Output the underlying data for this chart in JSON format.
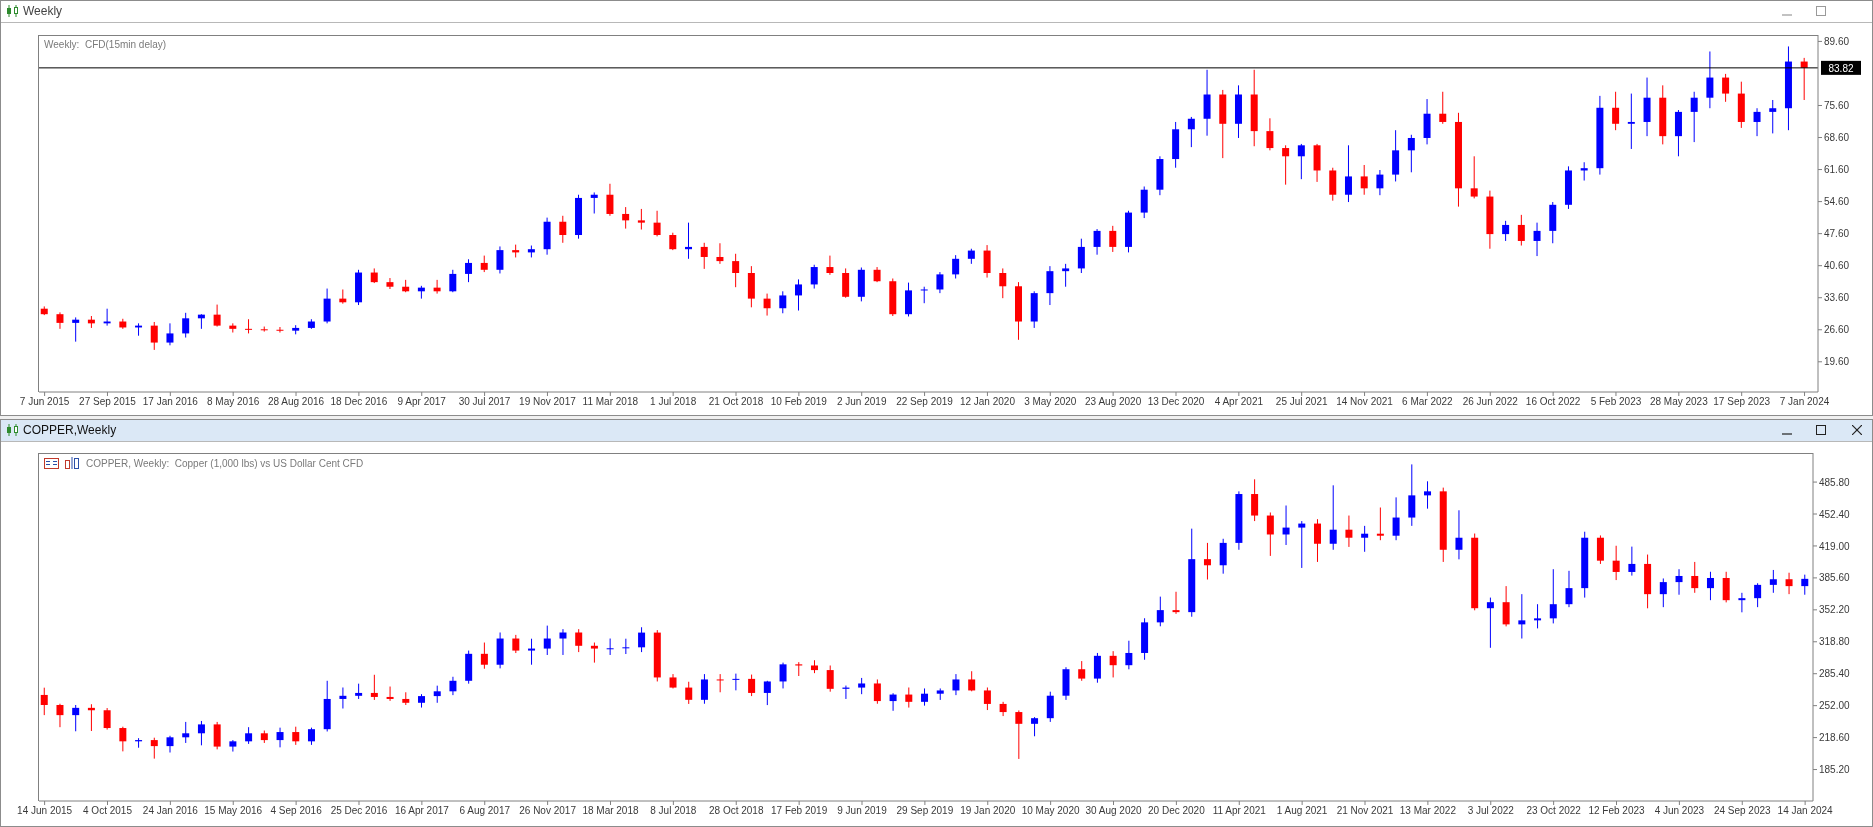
{
  "chart_data": [
    {
      "type": "candlestick",
      "title": "Weekly",
      "subtitle": "Weekly:  CFD(15min delay)",
      "x": [
        "2015-06-07",
        "2015-07-05",
        "2015-08-02",
        "2015-08-30",
        "2015-09-27",
        "2015-10-25",
        "2015-11-22",
        "2015-12-20",
        "2016-01-17",
        "2016-02-14",
        "2016-03-13",
        "2016-04-10",
        "2016-05-08",
        "2016-06-05",
        "2016-07-03",
        "2016-07-31",
        "2016-08-28",
        "2016-09-25",
        "2016-10-23",
        "2016-11-20",
        "2016-12-18",
        "2017-01-15",
        "2017-02-12",
        "2017-03-12",
        "2017-04-09",
        "2017-05-07",
        "2017-06-04",
        "2017-07-02",
        "2017-07-30",
        "2017-08-27",
        "2017-09-24",
        "2017-10-22",
        "2017-11-19",
        "2017-12-17",
        "2018-01-14",
        "2018-02-11",
        "2018-03-11",
        "2018-04-08",
        "2018-05-06",
        "2018-06-03",
        "2018-07-01",
        "2018-07-29",
        "2018-08-26",
        "2018-09-23",
        "2018-10-21",
        "2018-11-18",
        "2018-12-16",
        "2019-01-13",
        "2019-02-10",
        "2019-03-10",
        "2019-04-07",
        "2019-05-05",
        "2019-06-02",
        "2019-06-30",
        "2019-07-28",
        "2019-08-25",
        "2019-09-22",
        "2019-10-20",
        "2019-11-17",
        "2019-12-15",
        "2020-01-12",
        "2020-02-09",
        "2020-03-08",
        "2020-04-05",
        "2020-05-03",
        "2020-05-31",
        "2020-06-28",
        "2020-07-26",
        "2020-08-23",
        "2020-09-20",
        "2020-10-18",
        "2020-11-15",
        "2020-12-13",
        "2021-01-10",
        "2021-02-07",
        "2021-03-07",
        "2021-04-04",
        "2021-05-02",
        "2021-05-30",
        "2021-06-27",
        "2021-07-25",
        "2021-08-22",
        "2021-09-19",
        "2021-10-17",
        "2021-11-14",
        "2021-12-12",
        "2022-01-09",
        "2022-02-06",
        "2022-03-06",
        "2022-04-03",
        "2022-05-01",
        "2022-05-29",
        "2022-06-26",
        "2022-07-24",
        "2022-08-21",
        "2022-09-18",
        "2022-10-16",
        "2022-11-13",
        "2022-12-11",
        "2023-01-08",
        "2023-02-05",
        "2023-03-05",
        "2023-04-02",
        "2023-04-30",
        "2023-05-28",
        "2023-06-25",
        "2023-07-23",
        "2023-08-20",
        "2023-09-17",
        "2023-10-15",
        "2023-11-12",
        "2023-12-10",
        "2024-01-07"
      ],
      "ohlc": [
        [
          31.2,
          31.7,
          29.8,
          30.0
        ],
        [
          30.0,
          30.4,
          26.8,
          28.1
        ],
        [
          28.1,
          29.3,
          24.0,
          28.8
        ],
        [
          28.8,
          29.6,
          27.0,
          28.0
        ],
        [
          28.0,
          31.2,
          27.5,
          28.4
        ],
        [
          28.4,
          29.0,
          26.8,
          27.1
        ],
        [
          27.1,
          28.0,
          25.3,
          27.5
        ],
        [
          27.5,
          28.3,
          22.2,
          23.8
        ],
        [
          23.8,
          28.0,
          23.2,
          25.8
        ],
        [
          25.8,
          30.3,
          24.9,
          29.1
        ],
        [
          29.1,
          30.0,
          26.8,
          29.9
        ],
        [
          29.9,
          32.1,
          27.3,
          27.5
        ],
        [
          27.5,
          28.0,
          26.0,
          26.8
        ],
        [
          26.8,
          28.9,
          25.8,
          26.7
        ],
        [
          26.7,
          27.3,
          26.2,
          26.6
        ],
        [
          26.6,
          27.2,
          26.0,
          26.4
        ],
        [
          26.4,
          27.6,
          25.6,
          27.0
        ],
        [
          27.0,
          28.9,
          26.8,
          28.4
        ],
        [
          28.4,
          35.6,
          28.0,
          33.4
        ],
        [
          33.4,
          35.4,
          32.3,
          32.6
        ],
        [
          32.6,
          39.7,
          32.0,
          39.1
        ],
        [
          39.1,
          40.0,
          36.8,
          37.0
        ],
        [
          37.0,
          37.9,
          35.5,
          36.0
        ],
        [
          36.0,
          37.5,
          34.8,
          35.0
        ],
        [
          35.0,
          36.2,
          33.4,
          35.8
        ],
        [
          35.8,
          37.5,
          34.5,
          35.0
        ],
        [
          35.0,
          39.7,
          34.8,
          38.8
        ],
        [
          38.8,
          42.0,
          37.0,
          41.2
        ],
        [
          41.2,
          42.8,
          39.2,
          39.7
        ],
        [
          39.7,
          44.8,
          38.9,
          44.0
        ],
        [
          44.0,
          45.2,
          42.4,
          43.5
        ],
        [
          43.5,
          45.0,
          42.4,
          44.2
        ],
        [
          44.2,
          51.1,
          43.0,
          50.2
        ],
        [
          50.2,
          51.5,
          45.6,
          47.3
        ],
        [
          47.3,
          56.1,
          46.5,
          55.4
        ],
        [
          55.4,
          56.6,
          52.0,
          56.1
        ],
        [
          56.1,
          58.5,
          51.5,
          51.9
        ],
        [
          51.9,
          53.4,
          48.7,
          50.5
        ],
        [
          50.5,
          53.0,
          48.5,
          50.0
        ],
        [
          50.0,
          52.6,
          47.0,
          47.3
        ],
        [
          47.3,
          47.8,
          44.0,
          44.2
        ],
        [
          44.2,
          50.0,
          42.1,
          44.7
        ],
        [
          44.7,
          45.6,
          39.9,
          42.5
        ],
        [
          42.5,
          45.5,
          41.0,
          41.6
        ],
        [
          41.6,
          43.2,
          35.9,
          39.0
        ],
        [
          39.0,
          40.5,
          31.5,
          33.4
        ],
        [
          33.4,
          34.5,
          29.7,
          31.3
        ],
        [
          31.3,
          35.0,
          30.2,
          34.1
        ],
        [
          34.1,
          37.6,
          30.8,
          36.5
        ],
        [
          36.5,
          40.8,
          35.6,
          40.3
        ],
        [
          40.3,
          42.8,
          38.6,
          39.0
        ],
        [
          39.0,
          40.0,
          33.6,
          33.8
        ],
        [
          33.8,
          40.2,
          32.8,
          39.7
        ],
        [
          39.7,
          40.3,
          37.0,
          37.2
        ],
        [
          37.2,
          37.8,
          29.6,
          30.0
        ],
        [
          30.0,
          36.9,
          29.5,
          35.2
        ],
        [
          35.2,
          36.0,
          32.4,
          35.4
        ],
        [
          35.4,
          39.2,
          34.6,
          38.7
        ],
        [
          38.7,
          42.9,
          37.8,
          42.1
        ],
        [
          42.1,
          44.3,
          41.0,
          43.9
        ],
        [
          43.9,
          45.1,
          38.0,
          39.0
        ],
        [
          39.0,
          40.0,
          33.5,
          36.1
        ],
        [
          36.1,
          37.0,
          24.4,
          28.4
        ],
        [
          28.4,
          35.0,
          27.0,
          34.6
        ],
        [
          34.6,
          40.5,
          32.0,
          39.4
        ],
        [
          39.4,
          41.0,
          36.0,
          40.0
        ],
        [
          40.0,
          46.5,
          39.0,
          44.7
        ],
        [
          44.7,
          48.6,
          43.0,
          48.2
        ],
        [
          48.2,
          49.3,
          43.6,
          44.7
        ],
        [
          44.7,
          52.6,
          43.5,
          52.2
        ],
        [
          52.2,
          57.9,
          51.0,
          57.2
        ],
        [
          57.2,
          64.5,
          56.0,
          63.9
        ],
        [
          63.9,
          72.0,
          62.0,
          70.4
        ],
        [
          70.4,
          73.1,
          66.5,
          72.7
        ],
        [
          72.7,
          83.4,
          69.0,
          78.0
        ],
        [
          78.0,
          79.0,
          64.1,
          71.6
        ],
        [
          71.6,
          80.0,
          68.5,
          78.0
        ],
        [
          78.0,
          83.4,
          66.7,
          70.0
        ],
        [
          70.0,
          72.8,
          65.8,
          66.3
        ],
        [
          66.3,
          66.9,
          58.3,
          64.5
        ],
        [
          64.5,
          67.2,
          59.5,
          66.9
        ],
        [
          66.9,
          67.2,
          58.9,
          61.4
        ],
        [
          61.4,
          62.0,
          54.8,
          56.1
        ],
        [
          56.1,
          66.9,
          54.5,
          60.1
        ],
        [
          60.1,
          62.6,
          56.1,
          57.5
        ],
        [
          57.5,
          61.5,
          56.0,
          60.5
        ],
        [
          60.5,
          70.2,
          59.0,
          65.8
        ],
        [
          65.8,
          69.2,
          61.0,
          68.5
        ],
        [
          68.5,
          77.0,
          67.1,
          73.8
        ],
        [
          73.8,
          78.6,
          71.6,
          72.0
        ],
        [
          72.0,
          74.0,
          53.5,
          57.5
        ],
        [
          57.5,
          64.5,
          55.3,
          55.7
        ],
        [
          55.7,
          57.0,
          44.3,
          47.5
        ],
        [
          47.5,
          50.4,
          46.0,
          49.5
        ],
        [
          49.5,
          51.7,
          45.0,
          46.0
        ],
        [
          46.0,
          50.0,
          42.7,
          48.2
        ],
        [
          48.2,
          54.5,
          45.5,
          53.9
        ],
        [
          53.9,
          62.3,
          53.0,
          61.4
        ],
        [
          61.4,
          63.2,
          59.2,
          61.9
        ],
        [
          61.9,
          77.7,
          60.5,
          75.1
        ],
        [
          75.1,
          78.6,
          70.2,
          71.6
        ],
        [
          71.6,
          78.2,
          66.1,
          72.0
        ],
        [
          72.0,
          81.7,
          68.9,
          77.3
        ],
        [
          77.3,
          80.0,
          67.1,
          68.9
        ],
        [
          68.9,
          74.6,
          64.5,
          74.2
        ],
        [
          74.2,
          78.6,
          67.6,
          77.3
        ],
        [
          77.3,
          87.4,
          75.0,
          81.7
        ],
        [
          81.7,
          82.5,
          76.4,
          78.2
        ],
        [
          78.2,
          80.8,
          70.7,
          72.0
        ],
        [
          72.0,
          75.0,
          68.9,
          74.2
        ],
        [
          74.2,
          76.8,
          69.5,
          75.0
        ],
        [
          75.0,
          88.5,
          70.2,
          85.2
        ],
        [
          85.2,
          86.0,
          76.8,
          83.82
        ]
      ],
      "colors": [
        "#ff0000",
        "#ff0000",
        "#0000ff",
        "#ff0000",
        "#0000ff",
        "#ff0000",
        "#0000ff",
        "#ff0000",
        "#0000ff",
        "#0000ff",
        "#0000ff",
        "#ff0000",
        "#ff0000",
        "#ff0000",
        "#ff0000",
        "#ff0000",
        "#0000ff",
        "#0000ff",
        "#0000ff",
        "#ff0000",
        "#0000ff",
        "#ff0000",
        "#ff0000",
        "#ff0000",
        "#0000ff",
        "#ff0000",
        "#0000ff",
        "#0000ff",
        "#ff0000",
        "#0000ff",
        "#ff0000",
        "#0000ff",
        "#0000ff",
        "#ff0000",
        "#0000ff",
        "#0000ff",
        "#ff0000",
        "#ff0000",
        "#ff0000",
        "#ff0000",
        "#ff0000",
        "#0000ff",
        "#ff0000",
        "#ff0000",
        "#ff0000",
        "#ff0000",
        "#ff0000",
        "#0000ff",
        "#0000ff",
        "#0000ff",
        "#ff0000",
        "#ff0000",
        "#0000ff",
        "#ff0000",
        "#ff0000",
        "#0000ff",
        "#0000ff",
        "#0000ff",
        "#0000ff",
        "#0000ff",
        "#ff0000",
        "#ff0000",
        "#ff0000",
        "#0000ff",
        "#0000ff",
        "#0000ff",
        "#0000ff",
        "#0000ff",
        "#ff0000",
        "#0000ff",
        "#0000ff",
        "#0000ff",
        "#0000ff",
        "#0000ff",
        "#0000ff",
        "#ff0000",
        "#0000ff",
        "#ff0000",
        "#ff0000",
        "#ff0000",
        "#0000ff",
        "#ff0000",
        "#ff0000",
        "#0000ff",
        "#ff0000",
        "#0000ff",
        "#0000ff",
        "#0000ff",
        "#0000ff",
        "#ff0000",
        "#ff0000",
        "#ff0000",
        "#ff0000",
        "#0000ff",
        "#ff0000",
        "#0000ff",
        "#0000ff",
        "#0000ff",
        "#0000ff",
        "#0000ff",
        "#ff0000",
        "#0000ff",
        "#0000ff",
        "#ff0000",
        "#0000ff",
        "#0000ff",
        "#0000ff",
        "#ff0000",
        "#ff0000",
        "#0000ff",
        "#0000ff",
        "#0000ff",
        "#ff0000"
      ],
      "xlim": [
        "2015-05-28",
        "2024-01-31"
      ],
      "xticks": [
        {
          "value": "2015-06-07",
          "label": "7 Jun 2015"
        },
        {
          "value": "2015-09-27",
          "label": "27 Sep 2015"
        },
        {
          "value": "2016-01-17",
          "label": "17 Jan 2016"
        },
        {
          "value": "2016-05-08",
          "label": "8 May 2016"
        },
        {
          "value": "2016-08-28",
          "label": "28 Aug 2016"
        },
        {
          "value": "2016-12-18",
          "label": "18 Dec 2016"
        },
        {
          "value": "2017-04-09",
          "label": "9 Apr 2017"
        },
        {
          "value": "2017-07-30",
          "label": "30 Jul 2017"
        },
        {
          "value": "2017-11-19",
          "label": "19 Nov 2017"
        },
        {
          "value": "2018-03-11",
          "label": "11 Mar 2018"
        },
        {
          "value": "2018-07-01",
          "label": "1 Jul 2018"
        },
        {
          "value": "2018-10-21",
          "label": "21 Oct 2018"
        },
        {
          "value": "2019-02-10",
          "label": "10 Feb 2019"
        },
        {
          "value": "2019-06-02",
          "label": "2 Jun 2019"
        },
        {
          "value": "2019-09-22",
          "label": "22 Sep 2019"
        },
        {
          "value": "2020-01-12",
          "label": "12 Jan 2020"
        },
        {
          "value": "2020-05-03",
          "label": "3 May 2020"
        },
        {
          "value": "2020-08-23",
          "label": "23 Aug 2020"
        },
        {
          "value": "2020-12-13",
          "label": "13 Dec 2020"
        },
        {
          "value": "2021-04-04",
          "label": "4 Apr 2021"
        },
        {
          "value": "2021-07-25",
          "label": "25 Jul 2021"
        },
        {
          "value": "2021-11-14",
          "label": "14 Nov 2021"
        },
        {
          "value": "2022-03-06",
          "label": "6 Mar 2022"
        },
        {
          "value": "2022-06-26",
          "label": "26 Jun 2022"
        },
        {
          "value": "2022-10-16",
          "label": "16 Oct 2022"
        },
        {
          "value": "2023-02-05",
          "label": "5 Feb 2023"
        },
        {
          "value": "2023-05-28",
          "label": "28 May 2023"
        },
        {
          "value": "2023-09-17",
          "label": "17 Sep 2023"
        },
        {
          "value": "2024-01-07",
          "label": "7 Jan 2024"
        }
      ],
      "ylim": [
        13.0,
        91.0
      ],
      "yticks": [
        {
          "value": 19.6,
          "label": "19.60"
        },
        {
          "value": 26.6,
          "label": "26.60"
        },
        {
          "value": 33.6,
          "label": "33.60"
        },
        {
          "value": 40.6,
          "label": "40.60"
        },
        {
          "value": 47.6,
          "label": "47.60"
        },
        {
          "value": 54.6,
          "label": "54.60"
        },
        {
          "value": 61.6,
          "label": "61.60"
        },
        {
          "value": 68.6,
          "label": "68.60"
        },
        {
          "value": 75.6,
          "label": "75.60"
        },
        {
          "value": 89.6,
          "label": "89.60"
        }
      ],
      "ref_lines": [
        {
          "axis": "y",
          "value": 83.82,
          "label": "83.82",
          "color": "#000000",
          "line_style": "solid"
        }
      ]
    },
    {
      "type": "candlestick",
      "title": "COPPER,Weekly",
      "subtitle": "COPPER, Weekly:  Copper (1,000 lbs) vs US Dollar Cent CFD",
      "x": [
        "2015-06-14",
        "2015-07-12",
        "2015-08-09",
        "2015-09-06",
        "2015-10-04",
        "2015-11-01",
        "2015-11-29",
        "2015-12-27",
        "2016-01-24",
        "2016-02-21",
        "2016-03-20",
        "2016-04-17",
        "2016-05-15",
        "2016-06-12",
        "2016-07-10",
        "2016-08-07",
        "2016-09-04",
        "2016-10-02",
        "2016-10-30",
        "2016-11-27",
        "2016-12-25",
        "2017-01-22",
        "2017-02-19",
        "2017-03-19",
        "2017-04-16",
        "2017-05-14",
        "2017-06-11",
        "2017-07-09",
        "2017-08-06",
        "2017-09-03",
        "2017-10-01",
        "2017-10-29",
        "2017-11-26",
        "2017-12-24",
        "2018-01-21",
        "2018-02-18",
        "2018-03-18",
        "2018-04-15",
        "2018-05-13",
        "2018-06-10",
        "2018-07-08",
        "2018-08-05",
        "2018-09-02",
        "2018-09-30",
        "2018-10-28",
        "2018-11-25",
        "2018-12-23",
        "2019-01-20",
        "2019-02-17",
        "2019-03-17",
        "2019-04-14",
        "2019-05-12",
        "2019-06-09",
        "2019-07-07",
        "2019-08-04",
        "2019-09-01",
        "2019-09-29",
        "2019-10-27",
        "2019-11-24",
        "2019-12-22",
        "2020-01-19",
        "2020-02-16",
        "2020-03-15",
        "2020-04-12",
        "2020-05-10",
        "2020-06-07",
        "2020-07-05",
        "2020-08-02",
        "2020-08-30",
        "2020-09-27",
        "2020-10-25",
        "2020-11-22",
        "2020-12-20",
        "2021-01-17",
        "2021-02-14",
        "2021-03-14",
        "2021-04-11",
        "2021-05-09",
        "2021-06-06",
        "2021-07-04",
        "2021-08-01",
        "2021-08-29",
        "2021-09-26",
        "2021-10-24",
        "2021-11-21",
        "2021-12-19",
        "2022-01-16",
        "2022-02-13",
        "2022-03-13",
        "2022-04-10",
        "2022-05-08",
        "2022-06-05",
        "2022-07-03",
        "2022-07-31",
        "2022-08-28",
        "2022-09-25",
        "2022-10-23",
        "2022-11-20",
        "2022-12-18",
        "2023-01-15",
        "2023-02-12",
        "2023-03-12",
        "2023-04-09",
        "2023-05-07",
        "2023-06-04",
        "2023-07-02",
        "2023-07-30",
        "2023-08-27",
        "2023-09-24",
        "2023-10-22",
        "2023-11-19",
        "2023-12-17",
        "2024-01-14"
      ],
      "ohlc": [
        [
          263.2,
          270.8,
          242.1,
          252.7
        ],
        [
          252.7,
          254.0,
          229.5,
          242.1
        ],
        [
          242.1,
          252.7,
          225.2,
          249.7
        ],
        [
          249.7,
          253.5,
          225.5,
          247.2
        ],
        [
          247.2,
          249.5,
          227.0,
          228.6
        ],
        [
          228.6,
          230.0,
          204.2,
          214.7
        ],
        [
          214.7,
          218.0,
          208.0,
          216.0
        ],
        [
          216.0,
          218.5,
          196.6,
          209.7
        ],
        [
          209.7,
          220.5,
          203.0,
          218.9
        ],
        [
          218.9,
          235.0,
          213.0,
          223.1
        ],
        [
          223.1,
          236.0,
          210.5,
          232.4
        ],
        [
          232.4,
          235.0,
          206.3,
          209.2
        ],
        [
          209.2,
          216.0,
          204.0,
          214.7
        ],
        [
          214.7,
          229.5,
          212.0,
          223.1
        ],
        [
          223.1,
          226.0,
          213.0,
          216.0
        ],
        [
          216.0,
          229.0,
          208.4,
          224.4
        ],
        [
          224.4,
          230.0,
          211.0,
          214.7
        ],
        [
          214.7,
          229.0,
          211.0,
          227.4
        ],
        [
          227.4,
          278.0,
          225.0,
          259.0
        ],
        [
          259.0,
          271.0,
          249.0,
          262.3
        ],
        [
          262.3,
          275.0,
          259.0,
          265.3
        ],
        [
          265.3,
          284.3,
          258.0,
          261.1
        ],
        [
          261.1,
          272.0,
          257.0,
          259.0
        ],
        [
          259.0,
          266.0,
          252.7,
          255.0
        ],
        [
          255.0,
          264.0,
          250.0,
          262.0
        ],
        [
          262.0,
          272.9,
          255.0,
          267.0
        ],
        [
          267.0,
          282.2,
          263.0,
          278.0
        ],
        [
          278.0,
          309.6,
          275.0,
          306.2
        ],
        [
          306.2,
          318.0,
          290.6,
          294.8
        ],
        [
          294.8,
          328.5,
          291.0,
          322.2
        ],
        [
          322.2,
          326.0,
          307.0,
          309.6
        ],
        [
          309.6,
          322.0,
          294.8,
          311.7
        ],
        [
          311.7,
          335.7,
          305.0,
          322.2
        ],
        [
          322.2,
          332.0,
          305.0,
          328.5
        ],
        [
          328.5,
          332.0,
          308.0,
          314.6
        ],
        [
          314.6,
          318.0,
          297.0,
          311.7
        ],
        [
          311.7,
          322.2,
          305.0,
          312.0
        ],
        [
          312.0,
          322.0,
          306.0,
          313.0
        ],
        [
          313.0,
          334.0,
          308.0,
          328.4
        ],
        [
          328.4,
          331.0,
          277.3,
          281.5
        ],
        [
          281.5,
          285.0,
          270.0,
          270.9
        ],
        [
          270.9,
          277.0,
          253.8,
          258.1
        ],
        [
          258.1,
          285.0,
          254.0,
          279.4
        ],
        [
          279.4,
          285.0,
          266.0,
          279.0
        ],
        [
          279.0,
          285.5,
          268.0,
          280.0
        ],
        [
          280.0,
          284.5,
          262.0,
          265.3
        ],
        [
          265.3,
          278.0,
          252.6,
          277.3
        ],
        [
          277.3,
          297.0,
          270.0,
          295.2
        ],
        [
          295.2,
          297.5,
          283.0,
          294.0
        ],
        [
          294.0,
          299.5,
          286.0,
          289.2
        ],
        [
          289.2,
          294.0,
          266.6,
          269.6
        ],
        [
          269.6,
          273.0,
          259.0,
          270.9
        ],
        [
          270.9,
          281.0,
          264.0,
          275.2
        ],
        [
          275.2,
          279.4,
          254.0,
          256.8
        ],
        [
          256.8,
          265.0,
          246.6,
          263.6
        ],
        [
          263.6,
          271.0,
          250.0,
          256.0
        ],
        [
          256.0,
          270.0,
          252.0,
          264.5
        ],
        [
          264.5,
          270.0,
          258.0,
          267.9
        ],
        [
          267.9,
          285.0,
          263.0,
          279.4
        ],
        [
          279.4,
          288.0,
          267.0,
          267.9
        ],
        [
          267.9,
          271.0,
          247.4,
          253.8
        ],
        [
          253.8,
          256.0,
          241.1,
          245.3
        ],
        [
          245.3,
          247.0,
          196.3,
          233.0
        ],
        [
          233.0,
          240.0,
          220.0,
          238.9
        ],
        [
          238.9,
          266.6,
          235.0,
          262.4
        ],
        [
          262.4,
          292.2,
          258.0,
          290.1
        ],
        [
          290.1,
          298.6,
          278.0,
          280.3
        ],
        [
          280.3,
          307.1,
          276.0,
          304.1
        ],
        [
          304.1,
          309.0,
          281.5,
          294.3
        ],
        [
          294.3,
          319.9,
          290.0,
          307.1
        ],
        [
          307.1,
          343.4,
          300.0,
          339.1
        ],
        [
          339.1,
          366.0,
          335.0,
          351.9
        ],
        [
          351.9,
          371.1,
          348.0,
          349.8
        ],
        [
          349.8,
          437.1,
          345.0,
          405.2
        ],
        [
          405.2,
          422.2,
          383.9,
          398.8
        ],
        [
          398.8,
          426.5,
          390.0,
          422.2
        ],
        [
          422.2,
          476.1,
          415.0,
          473.3
        ],
        [
          473.3,
          488.7,
          445.0,
          450.8
        ],
        [
          450.8,
          454.0,
          408.6,
          431.0
        ],
        [
          431.0,
          461.3,
          420.0,
          438.2
        ],
        [
          438.2,
          445.0,
          396.0,
          442.4
        ],
        [
          442.4,
          447.0,
          402.3,
          421.3
        ],
        [
          421.3,
          482.4,
          415.0,
          436.0
        ],
        [
          436.0,
          450.8,
          418.0,
          427.6
        ],
        [
          427.6,
          440.0,
          412.9,
          431.8
        ],
        [
          431.8,
          459.2,
          425.0,
          429.7
        ],
        [
          429.7,
          469.8,
          425.0,
          448.7
        ],
        [
          448.7,
          504.3,
          440.0,
          471.9
        ],
        [
          471.9,
          486.6,
          458.0,
          476.1
        ],
        [
          476.1,
          480.0,
          402.3,
          415.0
        ],
        [
          415.0,
          456.3,
          405.0,
          427.6
        ],
        [
          427.6,
          432.0,
          351.7,
          353.9
        ],
        [
          353.9,
          365.0,
          312.5,
          360.2
        ],
        [
          360.2,
          377.0,
          334.9,
          337.0
        ],
        [
          337.0,
          368.6,
          322.2,
          341.2
        ],
        [
          341.2,
          358.1,
          332.8,
          343.3
        ],
        [
          343.3,
          394.7,
          338.0,
          358.1
        ],
        [
          358.1,
          393.0,
          355.0,
          374.9
        ],
        [
          374.9,
          433.9,
          365.0,
          427.6
        ],
        [
          427.6,
          430.0,
          400.2,
          403.6
        ],
        [
          403.6,
          419.2,
          383.3,
          391.8
        ],
        [
          391.8,
          418.3,
          388.0,
          400.2
        ],
        [
          400.2,
          410.0,
          353.8,
          368.6
        ],
        [
          368.6,
          385.0,
          355.0,
          381.2
        ],
        [
          381.2,
          394.7,
          368.0,
          387.6
        ],
        [
          387.6,
          402.3,
          370.0,
          374.9
        ],
        [
          374.9,
          392.0,
          362.3,
          385.5
        ],
        [
          385.5,
          392.0,
          360.0,
          362.3
        ],
        [
          362.3,
          370.0,
          349.6,
          364.4
        ],
        [
          364.4,
          380.0,
          355.0,
          378.3
        ],
        [
          378.3,
          393.9,
          370.0,
          384.2
        ],
        [
          384.2,
          391.0,
          368.6,
          377.0
        ],
        [
          377.0,
          389.0,
          368.0,
          384.6
        ]
      ],
      "colors": [
        "#ff0000",
        "#ff0000",
        "#0000ff",
        "#ff0000",
        "#ff0000",
        "#ff0000",
        "#0000ff",
        "#ff0000",
        "#0000ff",
        "#0000ff",
        "#0000ff",
        "#ff0000",
        "#0000ff",
        "#0000ff",
        "#ff0000",
        "#0000ff",
        "#ff0000",
        "#0000ff",
        "#0000ff",
        "#0000ff",
        "#0000ff",
        "#ff0000",
        "#ff0000",
        "#ff0000",
        "#0000ff",
        "#0000ff",
        "#0000ff",
        "#0000ff",
        "#ff0000",
        "#0000ff",
        "#ff0000",
        "#0000ff",
        "#0000ff",
        "#0000ff",
        "#ff0000",
        "#ff0000",
        "#0000ff",
        "#0000ff",
        "#0000ff",
        "#ff0000",
        "#ff0000",
        "#ff0000",
        "#0000ff",
        "#ff0000",
        "#0000ff",
        "#ff0000",
        "#0000ff",
        "#0000ff",
        "#ff0000",
        "#ff0000",
        "#ff0000",
        "#0000ff",
        "#0000ff",
        "#ff0000",
        "#0000ff",
        "#ff0000",
        "#0000ff",
        "#0000ff",
        "#0000ff",
        "#ff0000",
        "#ff0000",
        "#ff0000",
        "#ff0000",
        "#0000ff",
        "#0000ff",
        "#0000ff",
        "#ff0000",
        "#0000ff",
        "#ff0000",
        "#0000ff",
        "#0000ff",
        "#0000ff",
        "#ff0000",
        "#0000ff",
        "#ff0000",
        "#0000ff",
        "#0000ff",
        "#ff0000",
        "#ff0000",
        "#0000ff",
        "#0000ff",
        "#ff0000",
        "#0000ff",
        "#ff0000",
        "#0000ff",
        "#ff0000",
        "#0000ff",
        "#0000ff",
        "#0000ff",
        "#ff0000",
        "#0000ff",
        "#ff0000",
        "#0000ff",
        "#ff0000",
        "#0000ff",
        "#0000ff",
        "#0000ff",
        "#0000ff",
        "#0000ff",
        "#ff0000",
        "#ff0000",
        "#0000ff",
        "#ff0000",
        "#0000ff",
        "#0000ff",
        "#ff0000",
        "#0000ff",
        "#ff0000",
        "#0000ff",
        "#0000ff",
        "#0000ff",
        "#ff0000",
        "#0000ff"
      ],
      "xlim": [
        "2015-06-04",
        "2024-01-28"
      ],
      "xticks": [
        {
          "value": "2015-06-14",
          "label": "14 Jun 2015"
        },
        {
          "value": "2015-10-04",
          "label": "4 Oct 2015"
        },
        {
          "value": "2016-01-24",
          "label": "24 Jan 2016"
        },
        {
          "value": "2016-05-15",
          "label": "15 May 2016"
        },
        {
          "value": "2016-09-04",
          "label": "4 Sep 2016"
        },
        {
          "value": "2016-12-25",
          "label": "25 Dec 2016"
        },
        {
          "value": "2017-04-16",
          "label": "16 Apr 2017"
        },
        {
          "value": "2017-08-06",
          "label": "6 Aug 2017"
        },
        {
          "value": "2017-11-26",
          "label": "26 Nov 2017"
        },
        {
          "value": "2018-03-18",
          "label": "18 Mar 2018"
        },
        {
          "value": "2018-07-08",
          "label": "8 Jul 2018"
        },
        {
          "value": "2018-10-28",
          "label": "28 Oct 2018"
        },
        {
          "value": "2019-02-17",
          "label": "17 Feb 2019"
        },
        {
          "value": "2019-06-09",
          "label": "9 Jun 2019"
        },
        {
          "value": "2019-09-29",
          "label": "29 Sep 2019"
        },
        {
          "value": "2020-01-19",
          "label": "19 Jan 2020"
        },
        {
          "value": "2020-05-10",
          "label": "10 May 2020"
        },
        {
          "value": "2020-08-30",
          "label": "30 Aug 2020"
        },
        {
          "value": "2020-12-20",
          "label": "20 Dec 2020"
        },
        {
          "value": "2021-04-11",
          "label": "11 Apr 2021"
        },
        {
          "value": "2021-08-01",
          "label": "1 Aug 2021"
        },
        {
          "value": "2021-11-21",
          "label": "21 Nov 2021"
        },
        {
          "value": "2022-03-13",
          "label": "13 Mar 2022"
        },
        {
          "value": "2022-07-03",
          "label": "3 Jul 2022"
        },
        {
          "value": "2022-10-23",
          "label": "23 Oct 2022"
        },
        {
          "value": "2023-02-12",
          "label": "12 Feb 2023"
        },
        {
          "value": "2023-06-04",
          "label": "4 Jun 2023"
        },
        {
          "value": "2023-09-24",
          "label": "24 Sep 2023"
        },
        {
          "value": "2024-01-14",
          "label": "14 Jan 2024"
        }
      ],
      "ylim": [
        152.3,
        516.2
      ],
      "yticks": [
        {
          "value": 185.2,
          "label": "185.20"
        },
        {
          "value": 218.6,
          "label": "218.60"
        },
        {
          "value": 252.0,
          "label": "252.00"
        },
        {
          "value": 285.4,
          "label": "285.40"
        },
        {
          "value": 318.8,
          "label": "318.80"
        },
        {
          "value": 352.2,
          "label": "352.20"
        },
        {
          "value": 385.6,
          "label": "385.60"
        },
        {
          "value": 419.0,
          "label": "419.00"
        },
        {
          "value": 452.4,
          "label": "452.40"
        },
        {
          "value": 485.8,
          "label": "485.80"
        }
      ]
    }
  ]
}
